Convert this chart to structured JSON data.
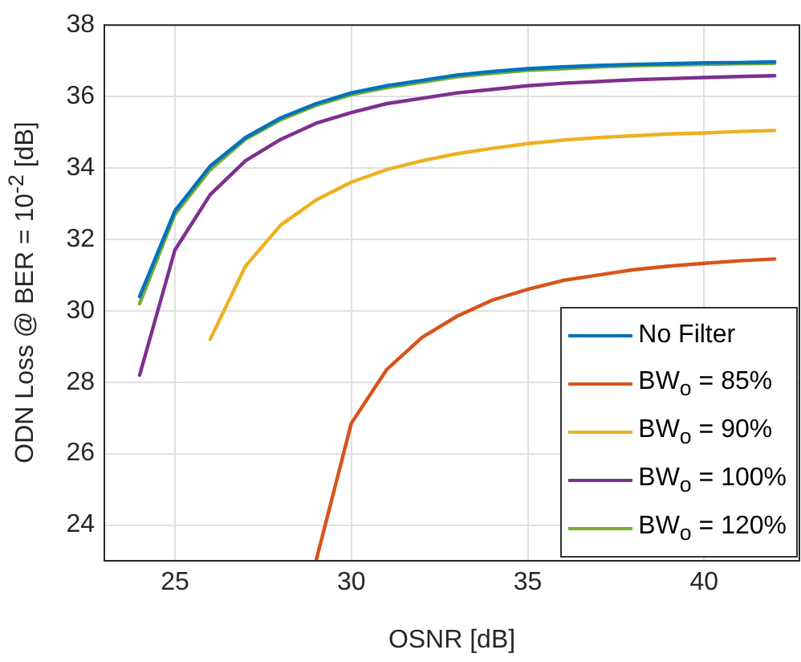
{
  "chart_data": {
    "type": "line",
    "xlabel": "OSNR [dB]",
    "ylabel": "ODN Loss @ BER = 10$^{-2}$ [dB]",
    "xlim": [
      23,
      42.7
    ],
    "xticks": [
      25,
      30,
      35,
      40
    ],
    "ylim": [
      23,
      38
    ],
    "yticks": [
      24,
      26,
      28,
      30,
      32,
      34,
      36,
      38
    ],
    "grid": true,
    "legend": "bottom right",
    "marker": "none",
    "line_style": "solid",
    "series": [
      {
        "name": "No Filter",
        "color": "#0072bd",
        "x": [
          24,
          25,
          26,
          27,
          28,
          29,
          30,
          31,
          32,
          33,
          34,
          35,
          36,
          37,
          38,
          39,
          40,
          41,
          42
        ],
        "values": [
          30.4,
          32.8,
          34.05,
          34.85,
          35.4,
          35.8,
          36.1,
          36.3,
          36.45,
          36.6,
          36.7,
          36.78,
          36.83,
          36.87,
          36.9,
          36.92,
          36.94,
          36.95,
          36.97
        ]
      },
      {
        "name": "BW$_{o}$ = 85%",
        "color": "#d95319",
        "x": [
          29,
          30,
          31,
          32,
          33,
          34,
          35,
          36,
          37,
          38,
          39,
          40,
          41,
          42
        ],
        "values": [
          23,
          26.85,
          28.35,
          29.25,
          29.85,
          30.3,
          30.6,
          30.85,
          31.0,
          31.15,
          31.25,
          31.33,
          31.4,
          31.45
        ]
      },
      {
        "name": "BW$_{o}$ = 90%",
        "color": "#edb120",
        "x": [
          26,
          27,
          28,
          29,
          30,
          31,
          32,
          33,
          34,
          35,
          36,
          37,
          38,
          39,
          40,
          41,
          42
        ],
        "values": [
          29.2,
          31.25,
          32.4,
          33.1,
          33.6,
          33.95,
          34.2,
          34.4,
          34.55,
          34.68,
          34.78,
          34.85,
          34.9,
          34.95,
          34.98,
          35.02,
          35.05
        ]
      },
      {
        "name": "BW$_{o}$ = 100%",
        "color": "#7e2f8e",
        "x": [
          24,
          25,
          26,
          27,
          28,
          29,
          30,
          31,
          32,
          33,
          34,
          35,
          36,
          37,
          38,
          39,
          40,
          41,
          42
        ],
        "values": [
          28.2,
          31.7,
          33.25,
          34.2,
          34.8,
          35.25,
          35.55,
          35.8,
          35.95,
          36.1,
          36.2,
          36.3,
          36.37,
          36.42,
          36.47,
          36.5,
          36.53,
          36.56,
          36.58
        ]
      },
      {
        "name": "BW$_{o}$ = 120%",
        "color": "#77ac30",
        "x": [
          24,
          25,
          26,
          27,
          28,
          29,
          30,
          31,
          32,
          33,
          34,
          35,
          36,
          37,
          38,
          39,
          40,
          41,
          42
        ],
        "values": [
          30.2,
          32.7,
          33.95,
          34.8,
          35.35,
          35.75,
          36.05,
          36.25,
          36.4,
          36.55,
          36.65,
          36.73,
          36.78,
          36.83,
          36.86,
          36.88,
          36.9,
          36.92,
          36.93
        ]
      }
    ]
  }
}
